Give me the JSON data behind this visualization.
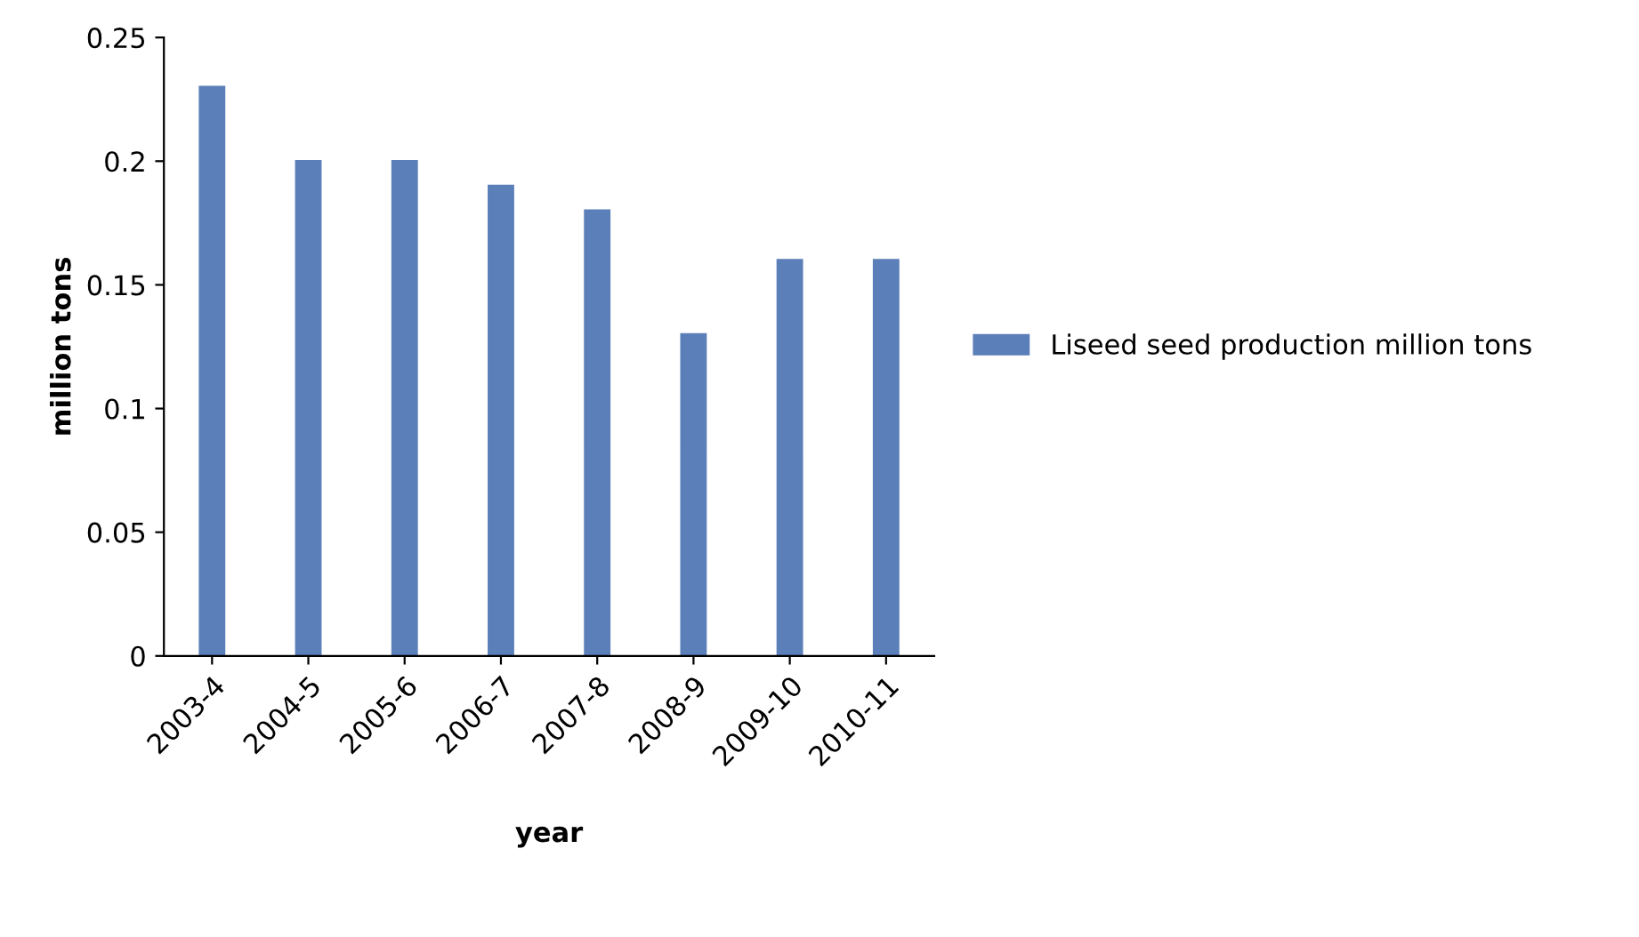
{
  "chart_data": {
    "type": "bar",
    "xlabel": "year",
    "ylabel": "million tons",
    "categories": [
      "2003-4",
      "2004-5",
      "2005-6",
      "2006-7",
      "2007-8",
      "2008-9",
      "2009-10",
      "2010-11"
    ],
    "series": [
      {
        "name": "Liseed seed production million tons",
        "color": "#5b7fb8",
        "values": [
          0.23,
          0.2,
          0.2,
          0.19,
          0.18,
          0.13,
          0.16,
          0.16
        ]
      }
    ],
    "ylim": [
      0,
      0.25
    ],
    "yticks": [
      0,
      0.05,
      0.1,
      0.15,
      0.2,
      0.25
    ],
    "grid": false,
    "legend": "right"
  }
}
